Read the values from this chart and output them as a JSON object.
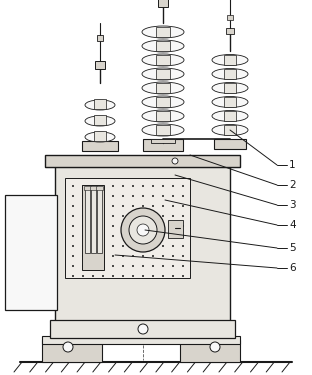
{
  "bg_color": "#ffffff",
  "line_color": "#1a1a1a",
  "line_width": 0.8,
  "label_color": "#1a1a1a",
  "labels": [
    "1",
    "2",
    "3",
    "4",
    "5",
    "6"
  ],
  "figsize": [
    3.12,
    3.75
  ],
  "dpi": 100,
  "fill_light": "#e8e6e0",
  "fill_mid": "#d8d4cc",
  "fill_white": "#f8f8f8",
  "fill_panel": "#e0ddd6"
}
